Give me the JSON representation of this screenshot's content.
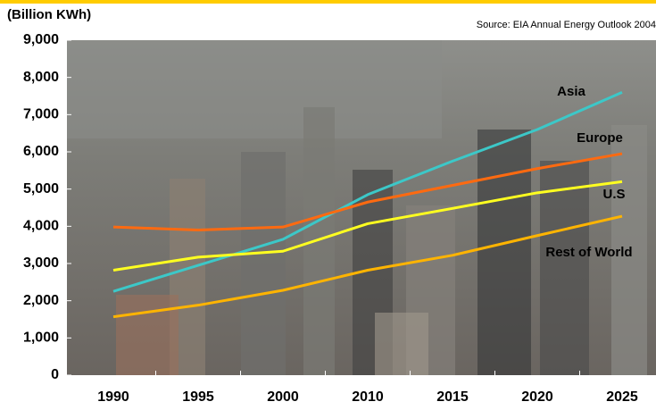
{
  "chart_data": {
    "type": "line",
    "title": "(Billion KWh)",
    "source": "Source: EIA Annual Energy Outlook 2004",
    "categories": [
      "1990",
      "1995",
      "2000",
      "2010",
      "2015",
      "2020",
      "2025"
    ],
    "ylim": [
      0,
      9000
    ],
    "yticks": [
      0,
      {
        "value": 1000,
        "label": "1,000"
      },
      {
        "value": 2000,
        "label": "2,000"
      },
      {
        "value": 3000,
        "label": "3,000"
      },
      {
        "value": 4000,
        "label": "4,000"
      },
      {
        "value": 5000,
        "label": "5,000"
      },
      {
        "value": 6000,
        "label": "6,000"
      },
      {
        "value": 7000,
        "label": "7,000"
      },
      {
        "value": 8000,
        "label": "8,000"
      },
      {
        "value": 9000,
        "label": "9,000"
      }
    ],
    "series": [
      {
        "name": "Asia",
        "color": "#3cc8c8",
        "values": [
          2250,
          2950,
          3650,
          4850,
          5750,
          6600,
          7600
        ]
      },
      {
        "name": "Europe",
        "color": "#ff6a10",
        "values": [
          3980,
          3900,
          3980,
          4650,
          5100,
          5550,
          5950
        ]
      },
      {
        "name": "U.S",
        "color": "#ffff20",
        "values": [
          2820,
          3170,
          3330,
          4070,
          4480,
          4900,
          5200
        ]
      },
      {
        "name": "Rest of World",
        "color": "#ffb400",
        "values": [
          1570,
          1880,
          2280,
          2820,
          3220,
          3750,
          4270
        ]
      }
    ]
  }
}
